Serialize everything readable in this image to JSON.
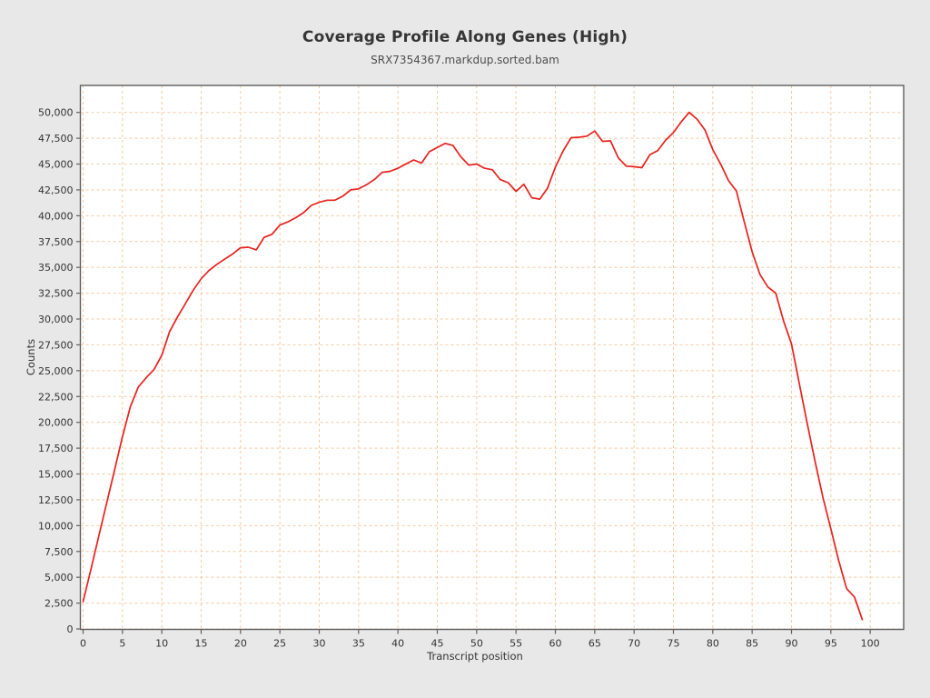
{
  "header": {
    "title": "Coverage Profile Along Genes (High)",
    "subtitle": "SRX7354367.markdup.sorted.bam"
  },
  "chart_data": {
    "type": "line",
    "title": "Coverage Profile Along Genes (High)",
    "subtitle": "SRX7354367.markdup.sorted.bam",
    "xlabel": "Transcript position",
    "ylabel": "Counts",
    "xlim": [
      -0.4,
      104.3
    ],
    "ylim": [
      0,
      52600
    ],
    "grid": true,
    "legend_position": "none",
    "x_ticks": [
      0,
      5,
      10,
      15,
      20,
      25,
      30,
      35,
      40,
      45,
      50,
      55,
      60,
      65,
      70,
      75,
      80,
      85,
      90,
      95,
      100
    ],
    "y_ticks": [
      0,
      2500,
      5000,
      7500,
      10000,
      12500,
      15000,
      17500,
      20000,
      22500,
      25000,
      27500,
      30000,
      32500,
      35000,
      37500,
      40000,
      42500,
      45000,
      47500,
      50000
    ],
    "y_tick_labels": [
      "0",
      "2,500",
      "5,000",
      "7,500",
      "10,000",
      "12,500",
      "15,000",
      "17,500",
      "20,000",
      "22,500",
      "25,000",
      "27,500",
      "30,000",
      "32,500",
      "35,000",
      "37,500",
      "40,000",
      "42,500",
      "45,000",
      "47,500",
      "50,000"
    ],
    "series": [
      {
        "name": "SRX7354367.markdup.sorted.bam",
        "color": "#e8211d",
        "x": [
          0,
          1,
          2,
          3,
          4,
          5,
          6,
          7,
          8,
          9,
          10,
          11,
          12,
          13,
          14,
          15,
          16,
          17,
          18,
          19,
          20,
          21,
          22,
          23,
          24,
          25,
          26,
          27,
          28,
          29,
          30,
          31,
          32,
          33,
          34,
          35,
          36,
          37,
          38,
          39,
          40,
          41,
          42,
          43,
          44,
          45,
          46,
          47,
          48,
          49,
          50,
          51,
          52,
          53,
          54,
          55,
          56,
          57,
          58,
          59,
          60,
          61,
          62,
          63,
          64,
          65,
          66,
          67,
          68,
          69,
          70,
          71,
          72,
          73,
          74,
          75,
          76,
          77,
          78,
          79,
          80,
          81,
          82,
          83,
          84,
          85,
          86,
          87,
          88,
          89,
          90,
          91,
          92,
          93,
          94,
          95,
          96,
          97,
          98,
          99
        ],
        "values": [
          2650,
          5800,
          9000,
          12200,
          15400,
          18600,
          21500,
          23400,
          24300,
          25100,
          26500,
          28800,
          30200,
          31500,
          32800,
          33900,
          34700,
          35300,
          35800,
          36300,
          36900,
          36950,
          36700,
          37900,
          38200,
          39100,
          39400,
          39800,
          40300,
          41000,
          41300,
          41500,
          41500,
          41900,
          42500,
          42600,
          43000,
          43500,
          44200,
          44300,
          44600,
          45000,
          45400,
          45100,
          46200,
          46600,
          47000,
          46800,
          45700,
          44900,
          45000,
          44600,
          44450,
          43500,
          43200,
          42350,
          43050,
          41750,
          41600,
          42650,
          44700,
          46300,
          47550,
          47600,
          47700,
          48200,
          47200,
          47250,
          45600,
          44800,
          44750,
          44650,
          45900,
          46300,
          47300,
          48050,
          49100,
          50000,
          49350,
          48300,
          46400,
          45000,
          43400,
          42400,
          39400,
          36500,
          34300,
          33100,
          32500,
          29800,
          27600,
          23700,
          19900,
          16200,
          12700,
          9700,
          6600,
          3900,
          3100,
          900
        ]
      }
    ],
    "colors": {
      "line": "#e8211d",
      "grid": "#f7c9a0",
      "plot_background": "#ffffff",
      "page_background": "#e8e8e8",
      "frame": "#5e5e5e",
      "text": "#333333"
    }
  }
}
